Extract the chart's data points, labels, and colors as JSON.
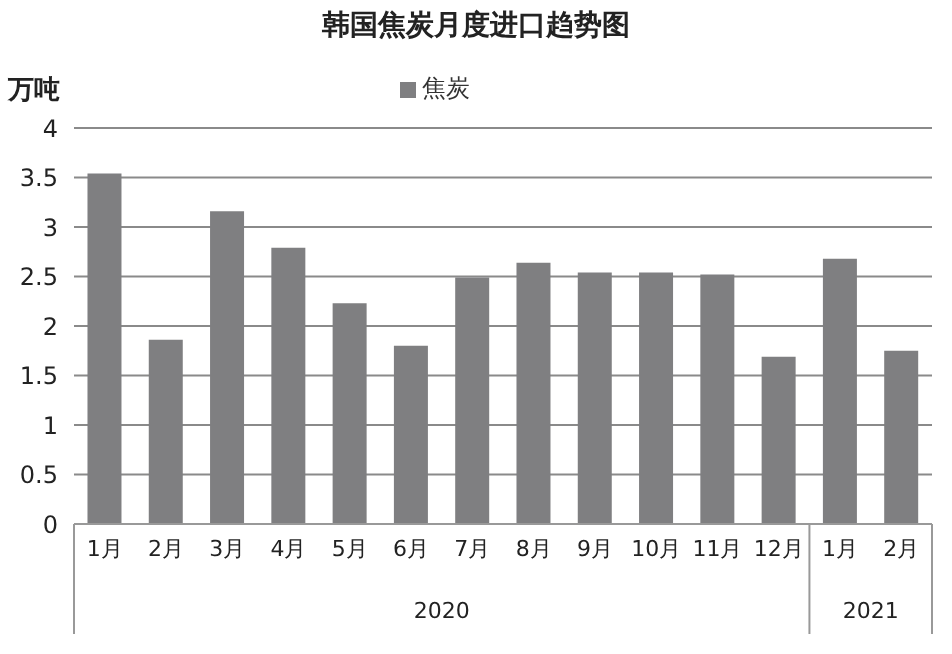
{
  "chart_data": {
    "type": "bar",
    "title": "韩国焦炭月度进口趋势图",
    "ylabel": "万吨",
    "categories": [
      "1月",
      "2月",
      "3月",
      "4月",
      "5月",
      "6月",
      "7月",
      "8月",
      "9月",
      "10月",
      "11月",
      "12月",
      "1月",
      "2月"
    ],
    "series": [
      {
        "name": "焦炭",
        "color": "#7f7f81",
        "values": [
          3.54,
          1.86,
          3.16,
          2.79,
          2.23,
          1.8,
          2.49,
          2.64,
          2.54,
          2.54,
          2.52,
          1.69,
          2.68,
          1.75
        ]
      }
    ],
    "annotations": [
      "2020",
      "2021"
    ],
    "ylim": [
      0,
      4
    ],
    "yticks": [
      0,
      0.5,
      1,
      1.5,
      2,
      2.5,
      3,
      3.5,
      4
    ],
    "grid": "y",
    "legend": "top"
  }
}
